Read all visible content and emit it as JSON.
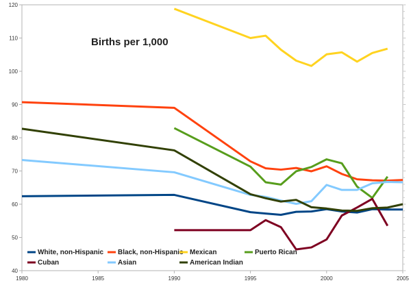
{
  "chart_data": {
    "type": "line",
    "title": "Births per 1,000",
    "xlabel": "",
    "ylabel": "",
    "xlim": [
      1980,
      2005
    ],
    "ylim": [
      40,
      120
    ],
    "x_ticks": [
      1980,
      1985,
      1990,
      1995,
      2000,
      2005
    ],
    "y_ticks": [
      40,
      50,
      60,
      70,
      80,
      90,
      100,
      110,
      120
    ],
    "grid": false,
    "legend_position": "bottom-left inside",
    "series": [
      {
        "name": "White, non-Hispanic",
        "color": "#004586",
        "x": [
          1980,
          1990,
          1995,
          1996,
          1997,
          1998,
          1999,
          2000,
          2001,
          2002,
          2003,
          2004,
          2005
        ],
        "values": [
          62.4,
          62.8,
          57.6,
          57.2,
          56.8,
          57.7,
          57.8,
          58.5,
          57.8,
          57.5,
          58.5,
          58.4,
          58.4
        ]
      },
      {
        "name": "Black, non-Hispanic",
        "color": "#ff420e",
        "x": [
          1980,
          1990,
          1995,
          1996,
          1997,
          1998,
          1999,
          2000,
          2001,
          2002,
          2003,
          2004,
          2005
        ],
        "values": [
          90.7,
          89.0,
          72.9,
          70.8,
          70.4,
          70.9,
          69.9,
          71.4,
          69.1,
          67.5,
          67.2,
          67.1,
          67.3
        ]
      },
      {
        "name": "Mexican",
        "color": "#ffd320",
        "x": [
          1990,
          1995,
          1996,
          1997,
          1998,
          1999,
          2000,
          2001,
          2002,
          2003,
          2004
        ],
        "values": [
          118.8,
          110.0,
          110.7,
          106.5,
          103.2,
          101.6,
          105.1,
          105.7,
          102.9,
          105.5,
          106.8
        ]
      },
      {
        "name": "Puerto Rican",
        "color": "#579d1c",
        "x": [
          1990,
          1995,
          1996,
          1997,
          1998,
          1999,
          2000,
          2001,
          2002,
          2003,
          2004
        ],
        "values": [
          82.9,
          71.3,
          66.6,
          65.9,
          69.9,
          71.2,
          73.5,
          72.3,
          65.3,
          61.9,
          68.3
        ]
      },
      {
        "name": "Cuban",
        "color": "#7e0021",
        "x": [
          1990,
          1995,
          1996,
          1997,
          1998,
          1999,
          2000,
          2001,
          2002,
          2003,
          2004
        ],
        "values": [
          52.2,
          52.2,
          55.2,
          53.1,
          46.4,
          47.0,
          49.4,
          56.6,
          59.0,
          61.6,
          53.5
        ]
      },
      {
        "name": "Asian",
        "color": "#83caff",
        "x": [
          1980,
          1990,
          1995,
          1996,
          1997,
          1998,
          1999,
          2000,
          2001,
          2002,
          2003,
          2004,
          2005
        ],
        "values": [
          73.3,
          69.6,
          62.8,
          62.2,
          61.1,
          60.1,
          60.9,
          65.8,
          64.3,
          64.3,
          66.3,
          66.7,
          66.6
        ]
      },
      {
        "name": "American Indian",
        "color": "#314004",
        "x": [
          1980,
          1990,
          1995,
          1996,
          1997,
          1998,
          1999,
          2000,
          2001,
          2002,
          2003,
          2004,
          2005
        ],
        "values": [
          82.7,
          76.2,
          63.0,
          61.8,
          60.8,
          61.3,
          59.1,
          58.7,
          58.1,
          58.0,
          58.8,
          59.0,
          60.0
        ]
      }
    ]
  }
}
